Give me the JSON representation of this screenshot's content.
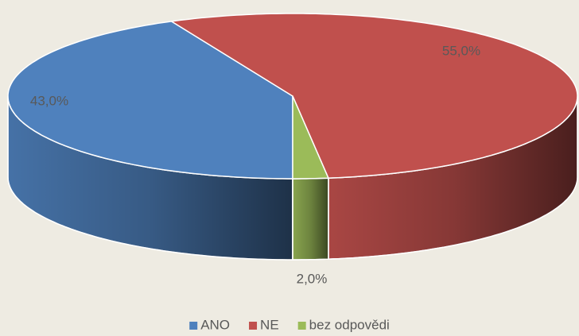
{
  "chart_data": {
    "type": "pie",
    "categories": [
      "ANO",
      "NE",
      "bez odpovědi"
    ],
    "values": [
      43,
      55,
      2
    ],
    "value_labels": [
      "43,0%",
      "55,0%",
      "2,0%"
    ],
    "colors": [
      "#4f81bd",
      "#c0504d",
      "#9bbb59"
    ],
    "legend": "bottom"
  }
}
